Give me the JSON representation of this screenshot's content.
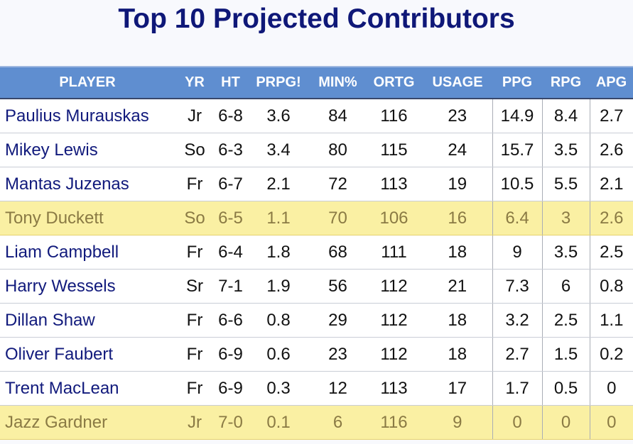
{
  "chart_data": {
    "type": "table",
    "title": "Top 10 Projected Contributors",
    "columns": [
      "PLAYER",
      "YR",
      "HT",
      "PRPG!",
      "MIN%",
      "ORTG",
      "USAGE",
      "PPG",
      "RPG",
      "APG"
    ],
    "rows": [
      {
        "player": "Paulius Murauskas",
        "yr": "Jr",
        "ht": "6-8",
        "prpg": "3.6",
        "min": "84",
        "ortg": "116",
        "usage": "23",
        "ppg": "14.9",
        "rpg": "8.4",
        "apg": "2.7",
        "highlight": false
      },
      {
        "player": "Mikey Lewis",
        "yr": "So",
        "ht": "6-3",
        "prpg": "3.4",
        "min": "80",
        "ortg": "115",
        "usage": "24",
        "ppg": "15.7",
        "rpg": "3.5",
        "apg": "2.6",
        "highlight": false
      },
      {
        "player": "Mantas Juzenas",
        "yr": "Fr",
        "ht": "6-7",
        "prpg": "2.1",
        "min": "72",
        "ortg": "113",
        "usage": "19",
        "ppg": "10.5",
        "rpg": "5.5",
        "apg": "2.1",
        "highlight": false
      },
      {
        "player": "Tony Duckett",
        "yr": "So",
        "ht": "6-5",
        "prpg": "1.1",
        "min": "70",
        "ortg": "106",
        "usage": "16",
        "ppg": "6.4",
        "rpg": "3",
        "apg": "2.6",
        "highlight": true
      },
      {
        "player": "Liam Campbell",
        "yr": "Fr",
        "ht": "6-4",
        "prpg": "1.8",
        "min": "68",
        "ortg": "111",
        "usage": "18",
        "ppg": "9",
        "rpg": "3.5",
        "apg": "2.5",
        "highlight": false
      },
      {
        "player": "Harry Wessels",
        "yr": "Sr",
        "ht": "7-1",
        "prpg": "1.9",
        "min": "56",
        "ortg": "112",
        "usage": "21",
        "ppg": "7.3",
        "rpg": "6",
        "apg": "0.8",
        "highlight": false
      },
      {
        "player": "Dillan Shaw",
        "yr": "Fr",
        "ht": "6-6",
        "prpg": "0.8",
        "min": "29",
        "ortg": "112",
        "usage": "18",
        "ppg": "3.2",
        "rpg": "2.5",
        "apg": "1.1",
        "highlight": false
      },
      {
        "player": "Oliver Faubert",
        "yr": "Fr",
        "ht": "6-9",
        "prpg": "0.6",
        "min": "23",
        "ortg": "112",
        "usage": "18",
        "ppg": "2.7",
        "rpg": "1.5",
        "apg": "0.2",
        "highlight": false
      },
      {
        "player": "Trent MacLean",
        "yr": "Fr",
        "ht": "6-9",
        "prpg": "0.3",
        "min": "12",
        "ortg": "113",
        "usage": "17",
        "ppg": "1.7",
        "rpg": "0.5",
        "apg": "0",
        "highlight": false
      },
      {
        "player": "Jazz Gardner",
        "yr": "Jr",
        "ht": "7-0",
        "prpg": "0.1",
        "min": "6",
        "ortg": "116",
        "usage": "9",
        "ppg": "0",
        "rpg": "0",
        "apg": "0",
        "highlight": true
      }
    ]
  },
  "colors": {
    "title": "#0f1878",
    "header_bg": "#5f8ed0",
    "header_text": "#ffffff",
    "name_text": "#111a7c",
    "highlight_bg": "#faf0a3",
    "highlight_text": "#8a7a44"
  }
}
